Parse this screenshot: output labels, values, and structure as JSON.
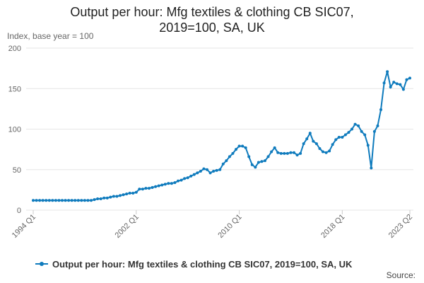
{
  "chart_data": {
    "type": "line",
    "title": "Output per hour: Mfg textiles & clothing CB SIC07, 2019=100, SA, UK",
    "y_label": "Index, base year = 100",
    "source": "Source:",
    "categories": [
      "1994 Q1",
      null,
      null,
      null,
      null,
      null,
      null,
      null,
      null,
      null,
      null,
      null,
      null,
      null,
      null,
      null,
      null,
      null,
      null,
      null,
      null,
      null,
      null,
      null,
      null,
      null,
      null,
      null,
      null,
      null,
      null,
      null,
      "2002 Q1",
      null,
      null,
      null,
      null,
      null,
      null,
      null,
      null,
      null,
      null,
      null,
      null,
      null,
      null,
      null,
      null,
      null,
      null,
      null,
      null,
      null,
      null,
      null,
      null,
      null,
      null,
      null,
      null,
      null,
      null,
      null,
      "2010 Q1",
      null,
      null,
      null,
      null,
      null,
      null,
      null,
      null,
      null,
      null,
      null,
      null,
      null,
      null,
      null,
      null,
      null,
      null,
      null,
      null,
      null,
      null,
      null,
      null,
      null,
      null,
      null,
      null,
      null,
      null,
      null,
      "2018 Q1",
      null,
      null,
      null,
      null,
      null,
      null,
      null,
      null,
      null,
      null,
      null,
      null,
      null,
      null,
      null,
      null,
      null,
      null,
      null,
      null,
      "2023 Q2"
    ],
    "series": [
      {
        "name": "Output per hour: Mfg textiles & clothing CB SIC07, 2019=100, SA, UK",
        "color": "#0f7bbd",
        "values": [
          12,
          12,
          12,
          12,
          12,
          12,
          12,
          12,
          12,
          12,
          12,
          12,
          12,
          12,
          12,
          12,
          12,
          12,
          12,
          13,
          14,
          14,
          15,
          15,
          16,
          17,
          17,
          18,
          19,
          20,
          21,
          21,
          22,
          26,
          26,
          27,
          27,
          28,
          29,
          30,
          31,
          32,
          33,
          33,
          34,
          36,
          37,
          39,
          40,
          42,
          44,
          46,
          48,
          51,
          50,
          46,
          48,
          49,
          50,
          57,
          61,
          66,
          70,
          75,
          79,
          79,
          77,
          66,
          56,
          53,
          59,
          60,
          61,
          66,
          72,
          77,
          71,
          70,
          70,
          70,
          71,
          71,
          68,
          70,
          82,
          88,
          95,
          85,
          82,
          76,
          72,
          71,
          73,
          81,
          87,
          90,
          90,
          93,
          96,
          100,
          106,
          104,
          97,
          93,
          80,
          52,
          97,
          104,
          124,
          157,
          171,
          152,
          158,
          156,
          155,
          149,
          161,
          163
        ]
      }
    ],
    "ylim": [
      0,
      200
    ],
    "yticks": [
      0,
      50,
      100,
      150,
      200
    ],
    "grid": true
  }
}
